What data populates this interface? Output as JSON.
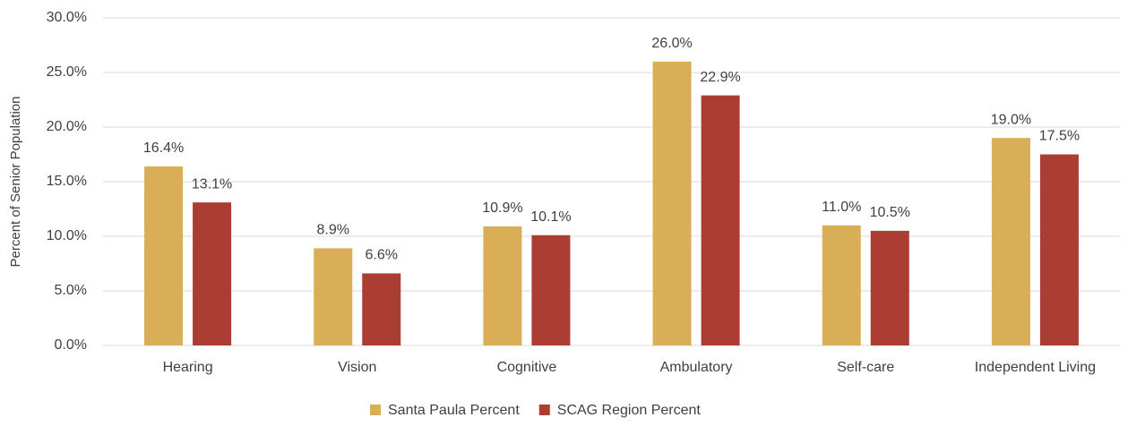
{
  "chart_data": {
    "type": "bar",
    "y_label": "Percent of Senior Population",
    "categories": [
      "Hearing",
      "Vision",
      "Cognitive",
      "Ambulatory",
      "Self-care",
      "Independent Living"
    ],
    "series": [
      {
        "name": "Santa Paula Percent",
        "color": "#d9ae57",
        "values": [
          16.4,
          8.9,
          10.9,
          26.0,
          11.0,
          19.0
        ],
        "value_labels": [
          "16.4%",
          "8.9%",
          "10.9%",
          "26.0%",
          "11.0%",
          "19.0%"
        ]
      },
      {
        "name": "SCAG Region Percent",
        "color": "#ab3d32",
        "values": [
          13.1,
          6.6,
          10.1,
          22.9,
          10.5,
          17.5
        ],
        "value_labels": [
          "13.1%",
          "6.6%",
          "10.1%",
          "22.9%",
          "10.5%",
          "17.5%"
        ]
      }
    ],
    "ylim": [
      0,
      30
    ],
    "yticks": [
      {
        "value": 0,
        "label": "0.0%"
      },
      {
        "value": 5,
        "label": "5.0%"
      },
      {
        "value": 10,
        "label": "10.0%"
      },
      {
        "value": 15,
        "label": "15.0%"
      },
      {
        "value": 20,
        "label": "20.0%"
      },
      {
        "value": 25,
        "label": "25.0%"
      },
      {
        "value": 30,
        "label": "30.0%"
      }
    ],
    "grid": true,
    "legend": "bottom"
  }
}
